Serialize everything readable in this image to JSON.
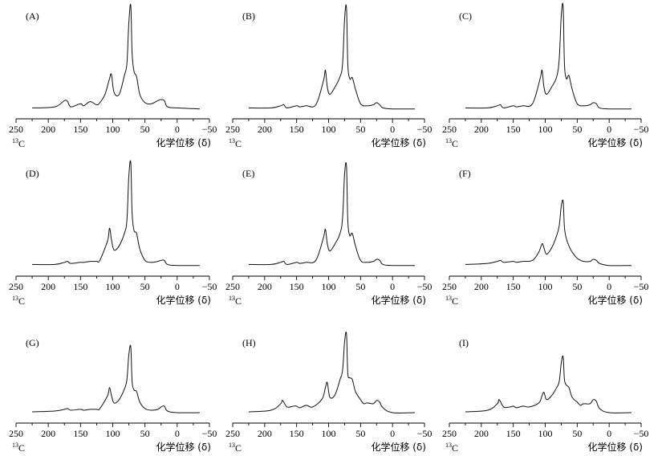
{
  "chart_data": {
    "type": "line",
    "x_tick_labels": [
      "250",
      "200",
      "150",
      "100",
      "50",
      "0",
      "−50"
    ],
    "x_ticks": [
      250,
      200,
      150,
      100,
      50,
      0,
      -50
    ],
    "xlim": [
      250,
      -50
    ],
    "x_axis_reversed": true,
    "nucleus_label": {
      "superscript": "13",
      "symbol": "C"
    },
    "xlabel": "化学位移 (δ)",
    "ylabel": "",
    "grid": false,
    "panels": [
      {
        "label": "(A)",
        "x": [
          225,
          190,
          175,
          170,
          165,
          150,
          145,
          135,
          125,
          120,
          112,
          105,
          102,
          98,
          90,
          82,
          78,
          75,
          72,
          70,
          67,
          63,
          58,
          50,
          40,
          30,
          25,
          20,
          15,
          0,
          -35
        ],
        "y": [
          0.02,
          0.03,
          0.09,
          0.08,
          0.03,
          0.06,
          0.04,
          0.08,
          0.05,
          0.07,
          0.15,
          0.3,
          0.34,
          0.17,
          0.15,
          0.33,
          0.45,
          0.84,
          1.0,
          0.55,
          0.37,
          0.32,
          0.15,
          0.07,
          0.06,
          0.09,
          0.1,
          0.09,
          0.03,
          0.02,
          0.01
        ]
      },
      {
        "label": "(B)",
        "x": [
          225,
          190,
          175,
          170,
          165,
          150,
          145,
          135,
          120,
          108,
          105,
          102,
          98,
          90,
          82,
          78,
          75,
          72,
          70,
          67,
          63,
          58,
          50,
          40,
          30,
          25,
          20,
          15,
          0,
          -35
        ],
        "y": [
          0.02,
          0.02,
          0.04,
          0.05,
          0.02,
          0.04,
          0.03,
          0.04,
          0.05,
          0.28,
          0.38,
          0.22,
          0.15,
          0.22,
          0.32,
          0.45,
          0.87,
          0.98,
          0.45,
          0.3,
          0.31,
          0.2,
          0.06,
          0.04,
          0.05,
          0.07,
          0.05,
          0.02,
          0.01,
          0.01
        ]
      },
      {
        "label": "(C)",
        "x": [
          225,
          190,
          175,
          170,
          165,
          150,
          145,
          135,
          120,
          108,
          105,
          102,
          98,
          90,
          82,
          78,
          75,
          72,
          70,
          67,
          63,
          58,
          50,
          40,
          30,
          25,
          20,
          15,
          0,
          -35
        ],
        "y": [
          0.02,
          0.02,
          0.04,
          0.05,
          0.02,
          0.04,
          0.03,
          0.04,
          0.06,
          0.3,
          0.38,
          0.22,
          0.15,
          0.22,
          0.32,
          0.5,
          0.9,
          0.99,
          0.45,
          0.3,
          0.33,
          0.2,
          0.06,
          0.04,
          0.05,
          0.07,
          0.06,
          0.02,
          0.01,
          0.01
        ]
      },
      {
        "label": "(D)",
        "x": [
          225,
          190,
          175,
          170,
          165,
          150,
          145,
          135,
          125,
          120,
          108,
          105,
          102,
          98,
          90,
          82,
          78,
          75,
          72,
          70,
          67,
          63,
          58,
          50,
          40,
          30,
          25,
          20,
          15,
          0,
          -35
        ],
        "y": [
          0.02,
          0.02,
          0.04,
          0.05,
          0.03,
          0.04,
          0.04,
          0.05,
          0.05,
          0.06,
          0.25,
          0.37,
          0.26,
          0.16,
          0.2,
          0.32,
          0.45,
          0.88,
          1.0,
          0.52,
          0.35,
          0.32,
          0.17,
          0.06,
          0.04,
          0.05,
          0.06,
          0.06,
          0.02,
          0.01,
          0.01
        ]
      },
      {
        "label": "(E)",
        "x": [
          225,
          190,
          175,
          170,
          165,
          150,
          145,
          135,
          120,
          108,
          105,
          102,
          98,
          90,
          82,
          78,
          75,
          72,
          70,
          67,
          63,
          58,
          50,
          40,
          30,
          25,
          20,
          15,
          0,
          -35
        ],
        "y": [
          0.02,
          0.02,
          0.04,
          0.05,
          0.02,
          0.04,
          0.03,
          0.04,
          0.06,
          0.28,
          0.36,
          0.22,
          0.15,
          0.22,
          0.32,
          0.48,
          0.89,
          0.97,
          0.45,
          0.3,
          0.32,
          0.2,
          0.06,
          0.04,
          0.05,
          0.07,
          0.06,
          0.02,
          0.01,
          0.01
        ]
      },
      {
        "label": "(F)",
        "x": [
          225,
          190,
          175,
          170,
          165,
          150,
          145,
          135,
          120,
          110,
          105,
          102,
          98,
          90,
          82,
          78,
          75,
          72,
          70,
          67,
          63,
          58,
          50,
          40,
          30,
          25,
          20,
          15,
          0,
          -35
        ],
        "y": [
          0.02,
          0.03,
          0.05,
          0.06,
          0.04,
          0.05,
          0.04,
          0.05,
          0.06,
          0.14,
          0.22,
          0.18,
          0.12,
          0.18,
          0.3,
          0.4,
          0.58,
          0.63,
          0.38,
          0.27,
          0.2,
          0.14,
          0.08,
          0.05,
          0.05,
          0.07,
          0.06,
          0.03,
          0.01,
          0.01
        ]
      },
      {
        "label": "(G)",
        "x": [
          225,
          190,
          175,
          170,
          165,
          150,
          145,
          135,
          125,
          120,
          108,
          105,
          102,
          98,
          90,
          82,
          78,
          75,
          72,
          70,
          67,
          63,
          58,
          50,
          40,
          30,
          25,
          20,
          15,
          0,
          -35
        ],
        "y": [
          0.02,
          0.03,
          0.05,
          0.06,
          0.04,
          0.05,
          0.04,
          0.05,
          0.05,
          0.06,
          0.22,
          0.32,
          0.22,
          0.13,
          0.17,
          0.3,
          0.42,
          0.73,
          0.82,
          0.4,
          0.29,
          0.27,
          0.14,
          0.06,
          0.04,
          0.05,
          0.08,
          0.09,
          0.03,
          0.01,
          0.01
        ]
      },
      {
        "label": "(H)",
        "x": [
          225,
          190,
          175,
          172,
          165,
          155,
          150,
          145,
          135,
          125,
          110,
          105,
          102,
          98,
          90,
          82,
          78,
          75,
          72,
          70,
          67,
          63,
          58,
          50,
          45,
          40,
          30,
          25,
          20,
          15,
          0,
          -35
        ],
        "y": [
          0.02,
          0.04,
          0.12,
          0.16,
          0.08,
          0.09,
          0.09,
          0.07,
          0.1,
          0.08,
          0.18,
          0.32,
          0.38,
          0.2,
          0.23,
          0.42,
          0.54,
          0.88,
          0.98,
          0.5,
          0.44,
          0.42,
          0.27,
          0.17,
          0.12,
          0.13,
          0.12,
          0.16,
          0.14,
          0.07,
          0.01,
          0.01
        ]
      },
      {
        "label": "(I)",
        "x": [
          225,
          190,
          175,
          172,
          165,
          155,
          150,
          145,
          135,
          125,
          110,
          105,
          102,
          98,
          90,
          82,
          78,
          75,
          72,
          70,
          67,
          63,
          58,
          50,
          45,
          40,
          30,
          25,
          20,
          15,
          0,
          -35
        ],
        "y": [
          0.02,
          0.04,
          0.12,
          0.17,
          0.08,
          0.08,
          0.09,
          0.07,
          0.09,
          0.08,
          0.13,
          0.22,
          0.26,
          0.17,
          0.22,
          0.32,
          0.4,
          0.62,
          0.7,
          0.42,
          0.35,
          0.32,
          0.2,
          0.14,
          0.1,
          0.12,
          0.12,
          0.17,
          0.15,
          0.06,
          0.01,
          0.01
        ]
      }
    ]
  }
}
